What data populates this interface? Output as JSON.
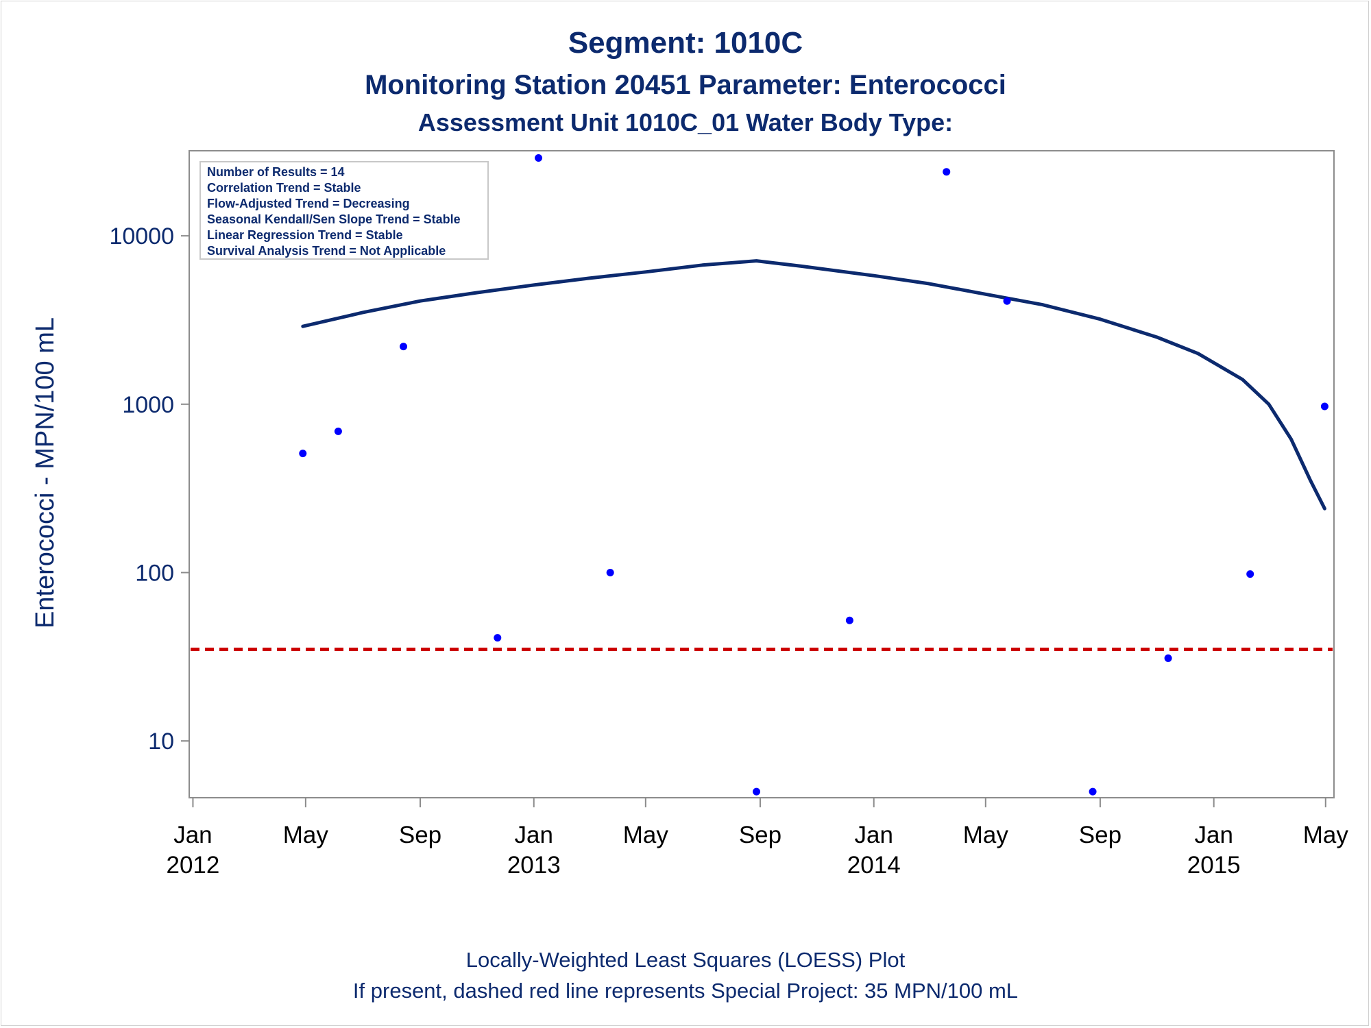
{
  "title": "Segment: 1010C",
  "subtitle_1": "Monitoring Station 20451 Parameter: Enterococci",
  "subtitle_2": "Assessment Unit 1010C_01   Water Body Type:",
  "footnote_1": "Locally-Weighted Least Squares (LOESS) Plot",
  "footnote_2": "If present, dashed red line represents Special Project: 35 MPN/100 mL",
  "info_box": [
    "Number of Results = 14",
    "Correlation Trend = Stable",
    "Flow-Adjusted Trend = Decreasing",
    "Seasonal Kendall/Sen Slope Trend = Stable",
    "Linear Regression Trend = Stable",
    "Survival Analysis Trend = Not Applicable"
  ],
  "chart_data": {
    "type": "scatter",
    "title": "Segment: 1010C",
    "ylabel": "Enterococci - MPN/100 mL",
    "xlabel": "",
    "y_scale": "log",
    "ylim": [
      4.6,
      32000
    ],
    "xlim": [
      "2011-12-28",
      "2015-05-10"
    ],
    "y_ticks": [
      {
        "value": 10,
        "label": "10"
      },
      {
        "value": 100,
        "label": "100"
      },
      {
        "value": 1000,
        "label": "1000"
      },
      {
        "value": 10000,
        "label": "10000"
      }
    ],
    "x_ticks": [
      {
        "date": "2012-01-01",
        "label": "Jan",
        "year": "2012"
      },
      {
        "date": "2012-05-01",
        "label": "May",
        "year": ""
      },
      {
        "date": "2012-09-01",
        "label": "Sep",
        "year": ""
      },
      {
        "date": "2013-01-01",
        "label": "Jan",
        "year": "2013"
      },
      {
        "date": "2013-05-01",
        "label": "May",
        "year": ""
      },
      {
        "date": "2013-09-01",
        "label": "Sep",
        "year": ""
      },
      {
        "date": "2014-01-01",
        "label": "Jan",
        "year": "2014"
      },
      {
        "date": "2014-05-01",
        "label": "May",
        "year": ""
      },
      {
        "date": "2014-09-01",
        "label": "Sep",
        "year": ""
      },
      {
        "date": "2015-01-01",
        "label": "Jan",
        "year": "2015"
      },
      {
        "date": "2015-05-01",
        "label": "May",
        "year": ""
      }
    ],
    "points": [
      {
        "date": "2012-04-28",
        "value": 510
      },
      {
        "date": "2012-06-05",
        "value": 690
      },
      {
        "date": "2012-08-14",
        "value": 2200
      },
      {
        "date": "2012-11-23",
        "value": 41
      },
      {
        "date": "2013-01-06",
        "value": 29000
      },
      {
        "date": "2013-03-24",
        "value": 100
      },
      {
        "date": "2013-08-28",
        "value": 5
      },
      {
        "date": "2013-12-06",
        "value": 52
      },
      {
        "date": "2014-03-20",
        "value": 24000
      },
      {
        "date": "2014-05-24",
        "value": 4100
      },
      {
        "date": "2014-08-24",
        "value": 5
      },
      {
        "date": "2014-11-13",
        "value": 31
      },
      {
        "date": "2015-02-09",
        "value": 98
      },
      {
        "date": "2015-04-30",
        "value": 970
      }
    ],
    "loess_curve": [
      {
        "date": "2012-04-28",
        "value": 2900
      },
      {
        "date": "2012-07-01",
        "value": 3500
      },
      {
        "date": "2012-09-01",
        "value": 4100
      },
      {
        "date": "2012-11-01",
        "value": 4600
      },
      {
        "date": "2013-01-01",
        "value": 5100
      },
      {
        "date": "2013-03-01",
        "value": 5600
      },
      {
        "date": "2013-05-01",
        "value": 6100
      },
      {
        "date": "2013-07-01",
        "value": 6700
      },
      {
        "date": "2013-08-28",
        "value": 7100
      },
      {
        "date": "2013-10-15",
        "value": 6600
      },
      {
        "date": "2014-01-01",
        "value": 5800
      },
      {
        "date": "2014-03-01",
        "value": 5200
      },
      {
        "date": "2014-05-01",
        "value": 4500
      },
      {
        "date": "2014-07-01",
        "value": 3900
      },
      {
        "date": "2014-09-01",
        "value": 3200
      },
      {
        "date": "2014-11-01",
        "value": 2500
      },
      {
        "date": "2014-12-15",
        "value": 2000
      },
      {
        "date": "2015-02-01",
        "value": 1400
      },
      {
        "date": "2015-03-01",
        "value": 1000
      },
      {
        "date": "2015-03-25",
        "value": 620
      },
      {
        "date": "2015-04-15",
        "value": 350
      },
      {
        "date": "2015-04-30",
        "value": 240
      }
    ],
    "reference_line": {
      "value": 35,
      "style": "dashed",
      "color": "#cc0000"
    },
    "colors": {
      "points": "#0000ff",
      "curve": "#0c2a6e",
      "text": "#0c2a6e"
    },
    "grid": false,
    "legend": "top-left inset box"
  }
}
